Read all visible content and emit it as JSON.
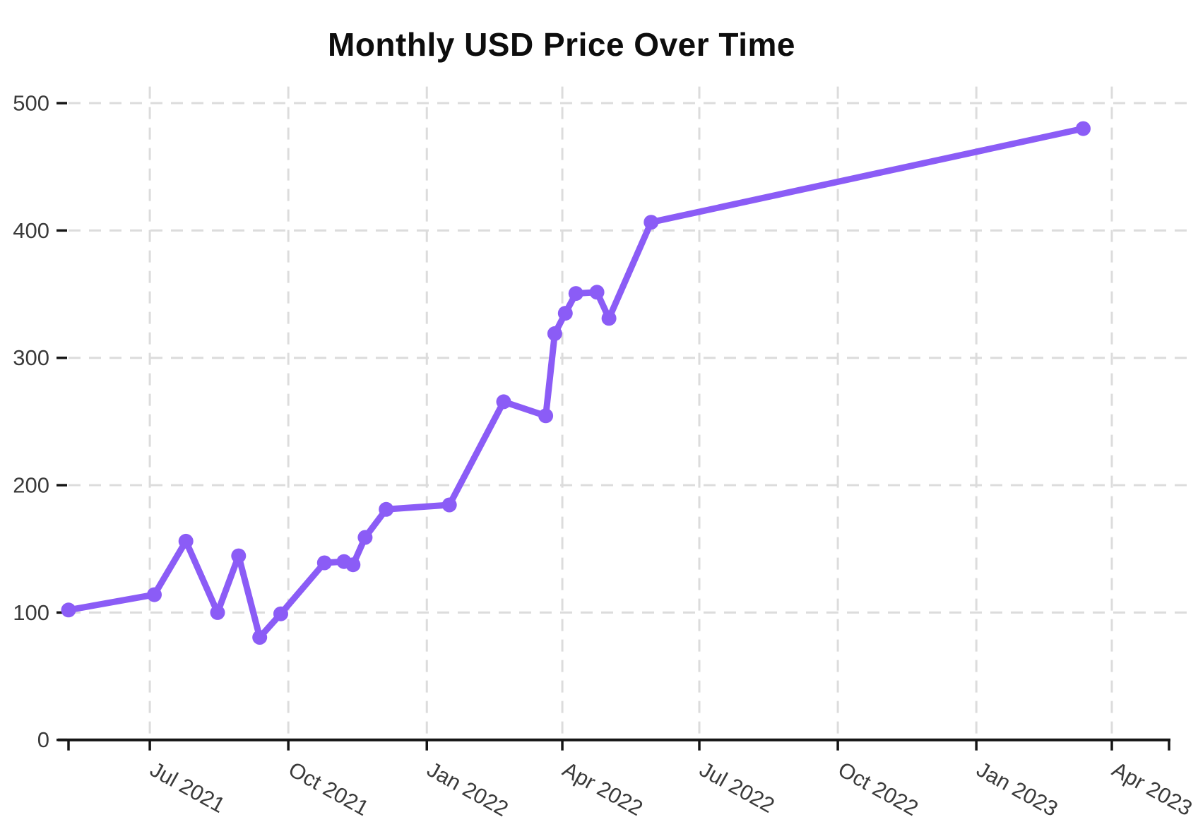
{
  "title": "Monthly USD Price Over Time",
  "chart_data": {
    "type": "line",
    "title": "Monthly USD Price Over Time",
    "xlabel": "",
    "ylabel": "",
    "legend": "none",
    "grid": "dashed-both",
    "line_color": "#8B5CF6",
    "y_ticks": [
      0,
      100,
      200,
      300,
      400,
      500
    ],
    "y_range": [
      0,
      513
    ],
    "x_range": [
      "2021-05-08",
      "2023-05-09"
    ],
    "x_ticks": [
      {
        "date": "2021-07-01",
        "label": "Jul 2021"
      },
      {
        "date": "2021-10-01",
        "label": "Oct 2021"
      },
      {
        "date": "2022-01-01",
        "label": "Jan 2022"
      },
      {
        "date": "2022-04-01",
        "label": "Apr 2022"
      },
      {
        "date": "2022-07-01",
        "label": "Jul 2022"
      },
      {
        "date": "2022-10-01",
        "label": "Oct 2022"
      },
      {
        "date": "2023-01-01",
        "label": "Jan 2023"
      },
      {
        "date": "2023-04-01",
        "label": "Apr 2023"
      }
    ],
    "series": [
      {
        "color": "#8B5CF6",
        "points": [
          {
            "date": "2021-05-08",
            "value": 102
          },
          {
            "date": "2021-07-04",
            "value": 114
          },
          {
            "date": "2021-07-25",
            "value": 156
          },
          {
            "date": "2021-08-15",
            "value": 100
          },
          {
            "date": "2021-08-29",
            "value": 144.5
          },
          {
            "date": "2021-09-12",
            "value": 80.5
          },
          {
            "date": "2021-09-26",
            "value": 99
          },
          {
            "date": "2021-10-25",
            "value": 139
          },
          {
            "date": "2021-11-07",
            "value": 140
          },
          {
            "date": "2021-11-13",
            "value": 137.5
          },
          {
            "date": "2021-11-21",
            "value": 159
          },
          {
            "date": "2021-12-05",
            "value": 181
          },
          {
            "date": "2022-01-16",
            "value": 184.5
          },
          {
            "date": "2022-02-21",
            "value": 265.5
          },
          {
            "date": "2022-03-21",
            "value": 254.5
          },
          {
            "date": "2022-03-27",
            "value": 319
          },
          {
            "date": "2022-04-03",
            "value": 335
          },
          {
            "date": "2022-04-10",
            "value": 350.5
          },
          {
            "date": "2022-04-24",
            "value": 351.5
          },
          {
            "date": "2022-05-02",
            "value": 331
          },
          {
            "date": "2022-05-30",
            "value": 406.5
          },
          {
            "date": "2023-03-13",
            "value": 480
          }
        ]
      }
    ]
  }
}
